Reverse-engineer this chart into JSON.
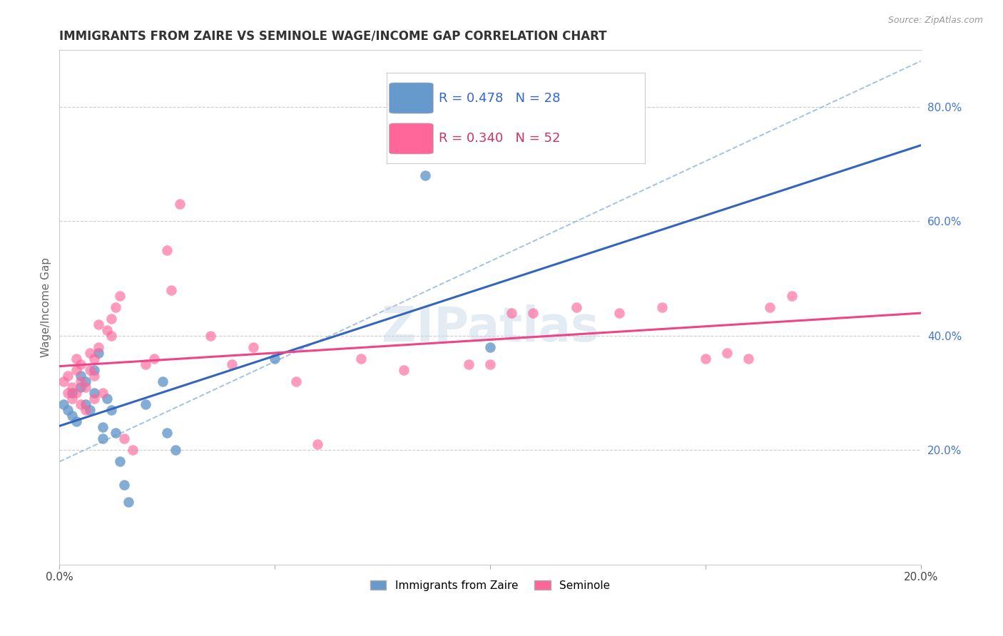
{
  "title": "IMMIGRANTS FROM ZAIRE VS SEMINOLE WAGE/INCOME GAP CORRELATION CHART",
  "source": "Source: ZipAtlas.com",
  "ylabel": "Wage/Income Gap",
  "xlim": [
    0.0,
    0.2
  ],
  "ylim": [
    0.0,
    0.9
  ],
  "x_ticks": [
    0.0,
    0.05,
    0.1,
    0.15,
    0.2
  ],
  "x_tick_labels": [
    "0.0%",
    "",
    "",
    "",
    "20.0%"
  ],
  "y_ticks_right": [
    0.2,
    0.4,
    0.6,
    0.8
  ],
  "y_tick_labels_right": [
    "20.0%",
    "40.0%",
    "60.0%",
    "80.0%"
  ],
  "legend_labels": [
    "Immigrants from Zaire",
    "Seminole"
  ],
  "R_zaire": 0.478,
  "N_zaire": 28,
  "R_seminole": 0.34,
  "N_seminole": 52,
  "blue_color": "#6699CC",
  "pink_color": "#FF6699",
  "blue_line_color": "#3366BB",
  "pink_line_color": "#EE4488",
  "blue_dash_color": "#99BBDD",
  "watermark_color": "#C8D8E8",
  "background_color": "#ffffff",
  "zaire_x": [
    0.001,
    0.002,
    0.003,
    0.003,
    0.004,
    0.005,
    0.005,
    0.006,
    0.006,
    0.007,
    0.008,
    0.008,
    0.009,
    0.01,
    0.01,
    0.011,
    0.012,
    0.013,
    0.014,
    0.015,
    0.016,
    0.02,
    0.024,
    0.025,
    0.027,
    0.05,
    0.085,
    0.1
  ],
  "zaire_y": [
    0.28,
    0.27,
    0.3,
    0.26,
    0.25,
    0.31,
    0.33,
    0.32,
    0.28,
    0.27,
    0.3,
    0.34,
    0.37,
    0.22,
    0.24,
    0.29,
    0.27,
    0.23,
    0.18,
    0.14,
    0.11,
    0.28,
    0.32,
    0.23,
    0.2,
    0.36,
    0.68,
    0.38
  ],
  "seminole_x": [
    0.001,
    0.002,
    0.002,
    0.003,
    0.003,
    0.004,
    0.004,
    0.004,
    0.005,
    0.005,
    0.005,
    0.006,
    0.006,
    0.007,
    0.007,
    0.008,
    0.008,
    0.008,
    0.009,
    0.009,
    0.01,
    0.011,
    0.012,
    0.012,
    0.013,
    0.014,
    0.015,
    0.017,
    0.02,
    0.022,
    0.025,
    0.026,
    0.028,
    0.035,
    0.04,
    0.045,
    0.055,
    0.06,
    0.07,
    0.08,
    0.095,
    0.1,
    0.105,
    0.11,
    0.12,
    0.13,
    0.14,
    0.15,
    0.155,
    0.16,
    0.165,
    0.17
  ],
  "seminole_y": [
    0.32,
    0.3,
    0.33,
    0.29,
    0.31,
    0.3,
    0.34,
    0.36,
    0.28,
    0.32,
    0.35,
    0.27,
    0.31,
    0.34,
    0.37,
    0.29,
    0.33,
    0.36,
    0.38,
    0.42,
    0.3,
    0.41,
    0.4,
    0.43,
    0.45,
    0.47,
    0.22,
    0.2,
    0.35,
    0.36,
    0.55,
    0.48,
    0.63,
    0.4,
    0.35,
    0.38,
    0.32,
    0.21,
    0.36,
    0.34,
    0.35,
    0.35,
    0.44,
    0.44,
    0.45,
    0.44,
    0.45,
    0.36,
    0.37,
    0.36,
    0.45,
    0.47
  ]
}
